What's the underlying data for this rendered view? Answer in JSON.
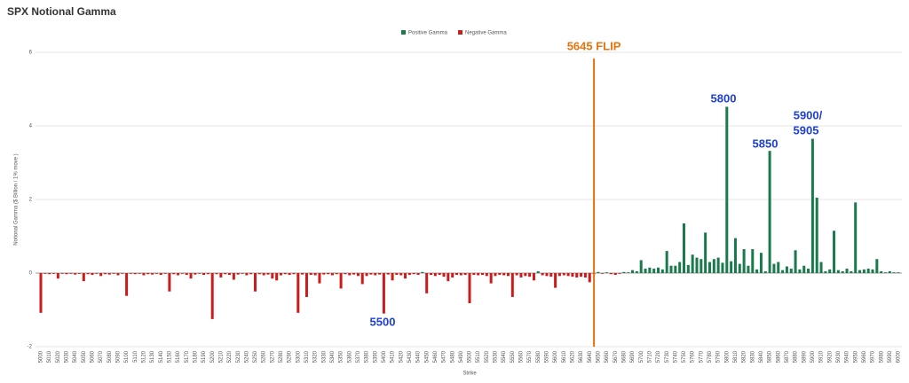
{
  "chart_data": {
    "type": "bar",
    "title": "SPX Notional Gamma",
    "x_label": "Strike",
    "y_label": "Notional Gamma ($ Billion / 1% move )",
    "ylim": [
      -2,
      6
    ],
    "yticks": [
      -2,
      0,
      2,
      4,
      6
    ],
    "grid": true,
    "legend": "top",
    "flip_strike": 5645,
    "flip_label": "5645 FLIP",
    "flip_color": "#e8730c",
    "annotations": [
      "5800",
      "5850",
      "5900/",
      "5905",
      "5500"
    ],
    "annotation_color": "#1d3fd6",
    "categories": [
      "5000",
      null,
      "5010",
      null,
      "5020",
      null,
      "5030",
      null,
      "5040",
      null,
      "5050",
      null,
      "5060",
      null,
      "5070",
      null,
      "5080",
      null,
      "5090",
      null,
      "5100",
      null,
      "5110",
      null,
      "5120",
      null,
      "5130",
      null,
      "5140",
      null,
      "5150",
      null,
      "5160",
      null,
      "5170",
      null,
      "5180",
      null,
      "5190",
      null,
      "5200",
      null,
      "5210",
      null,
      "5220",
      null,
      "5230",
      null,
      "5240",
      null,
      "5250",
      null,
      "5260",
      null,
      "5270",
      null,
      "5280",
      null,
      "5290",
      null,
      "5300",
      null,
      "5310",
      null,
      "5320",
      null,
      "5330",
      null,
      "5340",
      null,
      "5350",
      null,
      "5360",
      null,
      "5370",
      null,
      "5380",
      null,
      "5390",
      null,
      "5400",
      null,
      "5410",
      null,
      "5420",
      null,
      "5430",
      null,
      "5440",
      null,
      "5450",
      null,
      "5460",
      null,
      "5470",
      null,
      "5480",
      null,
      "5490",
      null,
      "5500",
      null,
      "5510",
      null,
      "5520",
      null,
      "5530",
      null,
      "5540",
      null,
      "5550",
      null,
      "5560",
      null,
      "5570",
      null,
      "5580",
      null,
      "5590",
      null,
      "5600",
      null,
      "5610",
      null,
      "5620",
      null,
      "5630",
      null,
      "5640",
      null,
      "5650",
      null,
      "5660",
      null,
      "5670",
      null,
      "5680",
      null,
      "5690",
      null,
      "5700",
      null,
      "5710",
      null,
      "5720",
      null,
      "5730",
      null,
      "5740",
      null,
      "5750",
      null,
      "5760",
      null,
      "5770",
      null,
      "5780",
      null,
      "5790",
      null,
      "5800",
      null,
      "5810",
      null,
      "5820",
      null,
      "5830",
      null,
      "5840",
      null,
      "5850",
      null,
      "5860",
      null,
      "5870",
      null,
      "5880",
      null,
      "5890",
      null,
      "5900",
      null,
      "5910",
      null,
      "5920",
      null,
      "5930",
      null,
      "5940",
      null,
      "5950",
      null,
      "5960",
      null,
      "5970",
      null,
      "5980",
      null,
      "5990",
      null,
      "6000"
    ],
    "series": [
      {
        "name": "Positive Gamma",
        "color": "#1a7a4c",
        "values": [
          null,
          null,
          null,
          null,
          null,
          null,
          null,
          null,
          null,
          null,
          null,
          null,
          null,
          null,
          null,
          null,
          null,
          null,
          null,
          null,
          null,
          null,
          null,
          null,
          null,
          null,
          null,
          null,
          null,
          null,
          null,
          null,
          null,
          null,
          null,
          null,
          null,
          null,
          null,
          null,
          null,
          null,
          null,
          null,
          null,
          null,
          null,
          null,
          null,
          null,
          null,
          null,
          null,
          null,
          null,
          null,
          null,
          null,
          null,
          null,
          null,
          null,
          null,
          null,
          null,
          null,
          null,
          null,
          null,
          null,
          null,
          null,
          null,
          null,
          null,
          null,
          null,
          null,
          null,
          null,
          null,
          null,
          null,
          null,
          null,
          null,
          null,
          null,
          null,
          0.03,
          null,
          null,
          null,
          null,
          null,
          null,
          null,
          null,
          null,
          null,
          null,
          null,
          null,
          null,
          null,
          null,
          null,
          null,
          null,
          null,
          null,
          null,
          null,
          null,
          null,
          null,
          0.05,
          null,
          null,
          null,
          null,
          null,
          null,
          null,
          null,
          null,
          null,
          null,
          null,
          null,
          0.03,
          null,
          0.02,
          null,
          null,
          null,
          0.03,
          0.02,
          0.08,
          0.05,
          0.35,
          0.12,
          0.15,
          0.12,
          0.15,
          0.1,
          0.6,
          0.2,
          0.2,
          0.3,
          1.35,
          0.22,
          0.5,
          0.42,
          0.38,
          1.1,
          0.3,
          0.38,
          0.42,
          0.28,
          4.52,
          0.32,
          0.95,
          0.25,
          0.65,
          0.2,
          0.65,
          0.1,
          0.55,
          0.05,
          3.32,
          0.25,
          0.3,
          0.08,
          0.18,
          0.12,
          0.62,
          0.1,
          0.2,
          0.12,
          3.65,
          2.05,
          0.3,
          0.05,
          0.1,
          1.15,
          0.08,
          0.05,
          0.12,
          0.05,
          1.92,
          0.08,
          0.1,
          0.12,
          0.1,
          0.38,
          0.05,
          0.02,
          0.05,
          0.02,
          0.02
        ]
      },
      {
        "name": "Negative Gamma",
        "color": "#cc1b1b",
        "values": [
          -1.08,
          -0.02,
          -0.03,
          -0.02,
          -0.15,
          -0.02,
          -0.03,
          -0.02,
          -0.04,
          -0.02,
          -0.22,
          -0.03,
          -0.05,
          -0.02,
          -0.08,
          -0.03,
          -0.04,
          -0.02,
          -0.06,
          -0.02,
          -0.62,
          -0.02,
          -0.03,
          -0.02,
          -0.06,
          -0.03,
          -0.04,
          -0.02,
          -0.05,
          -0.02,
          -0.5,
          -0.03,
          -0.06,
          -0.02,
          -0.05,
          -0.15,
          -0.04,
          -0.02,
          -0.05,
          -0.03,
          -1.25,
          -0.03,
          -0.12,
          -0.03,
          -0.05,
          -0.18,
          -0.04,
          -0.02,
          -0.06,
          -0.03,
          -0.5,
          -0.03,
          -0.06,
          -0.04,
          -0.15,
          -0.2,
          -0.06,
          -0.03,
          -0.05,
          -0.03,
          -1.08,
          -0.04,
          -0.65,
          -0.05,
          -0.06,
          -0.28,
          -0.04,
          -0.03,
          -0.06,
          -0.03,
          -0.42,
          -0.03,
          -0.06,
          -0.04,
          -0.08,
          -0.3,
          -0.08,
          -0.04,
          -0.06,
          -0.04,
          -1.1,
          -0.04,
          -0.2,
          -0.05,
          -0.06,
          -0.15,
          -0.05,
          -0.03,
          -0.05,
          null,
          -0.55,
          -0.05,
          -0.08,
          -0.05,
          -0.1,
          -0.22,
          -0.12,
          -0.05,
          -0.06,
          -0.05,
          -0.82,
          -0.05,
          -0.06,
          -0.05,
          -0.08,
          -0.28,
          -0.08,
          -0.05,
          -0.06,
          -0.08,
          -0.65,
          -0.06,
          -0.12,
          -0.08,
          -0.1,
          -0.2,
          null,
          -0.06,
          -0.08,
          -0.1,
          -0.4,
          -0.08,
          -0.06,
          -0.08,
          -0.1,
          -0.12,
          -0.1,
          -0.12,
          -0.25,
          -0.03,
          null,
          -0.02,
          null,
          -0.03,
          -0.05,
          -0.02,
          null,
          null,
          null,
          null,
          null,
          null,
          null,
          null,
          null,
          null,
          null,
          null,
          null,
          null,
          null,
          null,
          null,
          null,
          null,
          null,
          null,
          null,
          null,
          null,
          null,
          null,
          null,
          null,
          null,
          null,
          null,
          null,
          null,
          null,
          null,
          null,
          null,
          null,
          null,
          null,
          null,
          null,
          null,
          null,
          null,
          null,
          null,
          null,
          null,
          null,
          null,
          null,
          null,
          null,
          null,
          null,
          null,
          null,
          null,
          null,
          null,
          null,
          null,
          null,
          null
        ]
      }
    ]
  }
}
